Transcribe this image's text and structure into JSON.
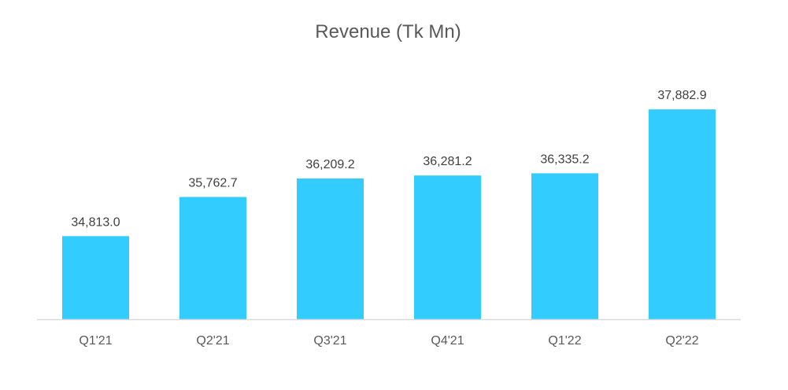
{
  "chart_data": {
    "type": "bar",
    "title": "Revenue (Tk Mn)",
    "xlabel": "",
    "ylabel": "",
    "categories": [
      "Q1'21",
      "Q2'21",
      "Q3'21",
      "Q4'21",
      "Q1'22",
      "Q2'22"
    ],
    "values": [
      34813.0,
      35762.7,
      36209.2,
      36281.2,
      36335.2,
      37882.9
    ],
    "data_labels": [
      "34,813.0",
      "35,762.7",
      "36,209.2",
      "36,281.2",
      "36,335.2",
      "37,882.9"
    ],
    "ylim": [
      32800,
      38400
    ],
    "grid": false,
    "legend": "none",
    "bar_color": "#33CCFF",
    "axis_color": "#D9D9D9"
  }
}
